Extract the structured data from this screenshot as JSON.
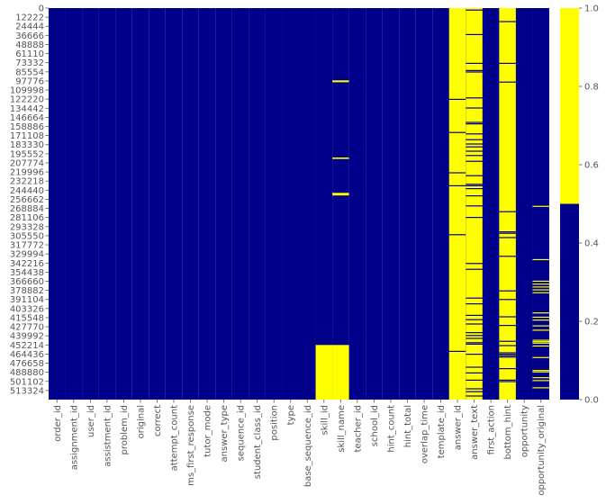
{
  "chart_data": {
    "type": "heatmap",
    "title": "",
    "xlabel": "",
    "ylabel": "",
    "columns": [
      "order_id",
      "assignment_id",
      "user_id",
      "assistment_id",
      "problem_id",
      "original",
      "correct",
      "attempt_count",
      "ms_first_response",
      "tutor_mode",
      "answer_type",
      "sequence_id",
      "student_class_id",
      "position",
      "type",
      "base_sequence_id",
      "skill_id",
      "skill_name",
      "teacher_id",
      "school_id",
      "hint_count",
      "hint_total",
      "overlap_time",
      "template_id",
      "answer_id",
      "answer_text",
      "first_action",
      "bottom_hint",
      "opportunity",
      "opportunity_original"
    ],
    "row_tick_labels": [
      "0",
      "12222",
      "24444",
      "36666",
      "48888",
      "61110",
      "73332",
      "85554",
      "97776",
      "109998",
      "122220",
      "134442",
      "146664",
      "158886",
      "171108",
      "183330",
      "195552",
      "207774",
      "219996",
      "232218",
      "244440",
      "256662",
      "268884",
      "281106",
      "293328",
      "305550",
      "317772",
      "329994",
      "342216",
      "354438",
      "366660",
      "378882",
      "391104",
      "403326",
      "415548",
      "427770",
      "439992",
      "452214",
      "464436",
      "476658",
      "488880",
      "501102",
      "513324"
    ],
    "row_max": 525534,
    "missing_segments": {
      "skill_id": [
        [
          452214,
          525534
        ]
      ],
      "skill_name": [
        [
          97000,
          99500
        ],
        [
          200500,
          202500
        ],
        [
          248000,
          251500
        ],
        [
          452214,
          525534
        ]
      ],
      "answer_id": [
        [
          0,
          525534
        ]
      ],
      "answer_text": [
        [
          0,
          525534
        ]
      ],
      "bottom_hint": [
        [
          0,
          525534
        ]
      ],
      "opportunity_original": [
        [
          190000,
          525534
        ]
      ]
    },
    "colormap": {
      "0": "#00008b",
      "1": "#ffff00"
    },
    "colorbar": {
      "ticks": [
        "0.0",
        "0.2",
        "0.4",
        "0.6",
        "0.8",
        "1.0"
      ],
      "tick_values": [
        0,
        0.2,
        0.4,
        0.6,
        0.8,
        1.0
      ],
      "range": [
        0,
        1
      ]
    },
    "value_range": [
      0,
      1
    ]
  }
}
